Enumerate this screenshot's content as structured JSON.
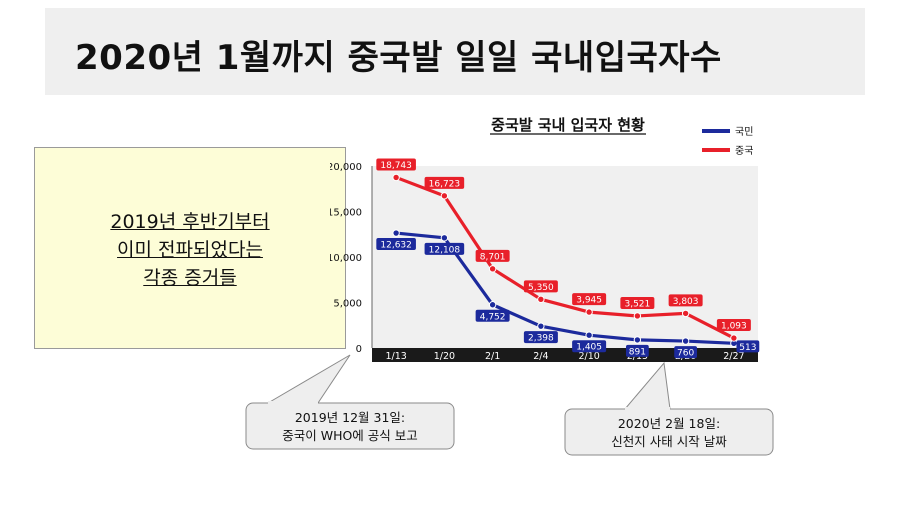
{
  "slide": {
    "title": "2020년 1월까지 중국발 일일 국내입국자수",
    "note_lines": [
      "2019년 후반기부터",
      "이미 전파되었다는",
      "각종 증거들"
    ],
    "callout_left": [
      "2019년 12월 31일:",
      "중국이 WHO에 공식 보고"
    ],
    "callout_right": [
      "2020년 2월 18일:",
      "신천지 사태 시작 날짜"
    ]
  },
  "colors": {
    "korean": "#1c2a9c",
    "chinese": "#e8202a",
    "plot_bg": "#f0f0f0",
    "axis_bar": "#1a1a1a",
    "note_bg": "#fdfdd7",
    "callout_bg": "#eeeeee"
  },
  "chart_data": {
    "type": "line",
    "title": "중국발 국내 입국자 현황",
    "categories": [
      "1/13",
      "1/20",
      "2/1",
      "2/4",
      "2/10",
      "2/15",
      "2/20",
      "2/27"
    ],
    "series": [
      {
        "name": "국민",
        "values": [
          12632,
          12108,
          4752,
          2398,
          1405,
          891,
          760,
          513
        ]
      },
      {
        "name": "중국",
        "values": [
          18743,
          16723,
          8701,
          5350,
          3945,
          3521,
          3803,
          1093
        ]
      }
    ],
    "yticks": [
      "20,000",
      "15,000",
      "10,000",
      "5,000",
      "0"
    ],
    "ylim": [
      0,
      20000
    ],
    "legend_position": "top-right",
    "grid": false
  }
}
